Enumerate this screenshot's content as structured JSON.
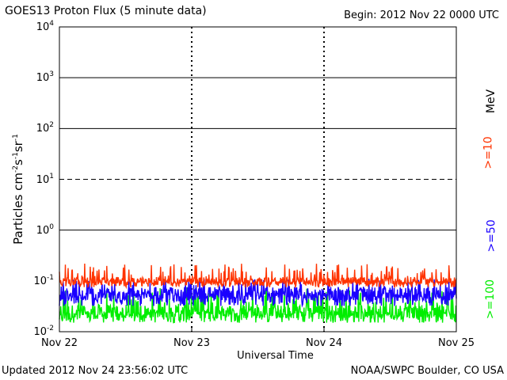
{
  "header": {
    "title": "GOES13 Proton Flux (5 minute data)",
    "begin": "Begin: 2012 Nov 22 0000 UTC"
  },
  "footer": {
    "updated": "Updated 2012 Nov 24 23:56:02 UTC",
    "credit": "NOAA/SWPC Boulder, CO USA"
  },
  "chart_data": {
    "type": "line",
    "title": "GOES13 Proton Flux (5 minute data)",
    "xlabel": "Universal Time",
    "ylabel": "Particles cm-2 s-1 sr-1",
    "yscale": "log",
    "ylim": [
      0.01,
      10000
    ],
    "xlim": [
      0,
      3
    ],
    "x_ticks": [
      "Nov 22",
      "Nov 23",
      "Nov 24",
      "Nov 25"
    ],
    "y_ticks": [
      {
        "base": "10",
        "exp": "4"
      },
      {
        "base": "10",
        "exp": "3"
      },
      {
        "base": "10",
        "exp": "2"
      },
      {
        "base": "10",
        "exp": "1"
      },
      {
        "base": "10",
        "exp": "0"
      },
      {
        "base": "10",
        "exp": "-1"
      },
      {
        "base": "10",
        "exp": "-2"
      }
    ],
    "threshold_lines": [
      {
        "value": 1000,
        "style": "solid"
      },
      {
        "value": 100,
        "style": "solid"
      },
      {
        "value": 10,
        "style": "dashed"
      },
      {
        "value": 1,
        "style": "solid"
      }
    ],
    "energy_unit": "MeV",
    "series": [
      {
        "name": ">=10",
        "color": "#ff3300",
        "typical": 0.1,
        "range": [
          0.075,
          0.22
        ]
      },
      {
        "name": ">=50",
        "color": "#1a00ff",
        "typical": 0.055,
        "range": [
          0.032,
          0.11
        ]
      },
      {
        "name": ">=100",
        "color": "#00ee00",
        "typical": 0.025,
        "range": [
          0.015,
          0.075
        ]
      }
    ],
    "grid": false
  }
}
